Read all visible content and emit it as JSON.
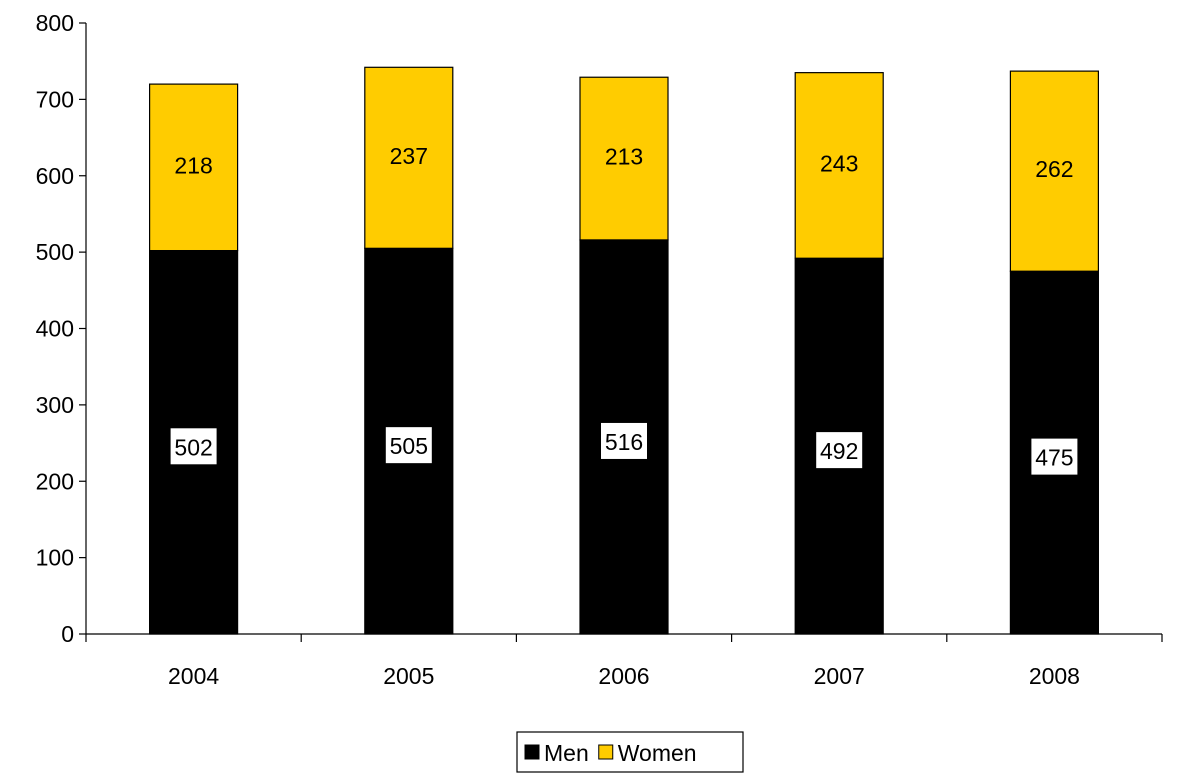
{
  "chart_data": {
    "type": "bar",
    "stacked": true,
    "categories": [
      "2004",
      "2005",
      "2006",
      "2007",
      "2008"
    ],
    "series": [
      {
        "name": "Men",
        "values": [
          502,
          505,
          516,
          492,
          475
        ],
        "color": "#000000"
      },
      {
        "name": "Women",
        "values": [
          218,
          237,
          213,
          243,
          262
        ],
        "color": "#FFCC00"
      }
    ],
    "ylim": [
      0,
      800
    ],
    "yticks": [
      0,
      100,
      200,
      300,
      400,
      500,
      600,
      700,
      800
    ],
    "grid": false,
    "legend_position": "bottom",
    "data_labels": true
  }
}
